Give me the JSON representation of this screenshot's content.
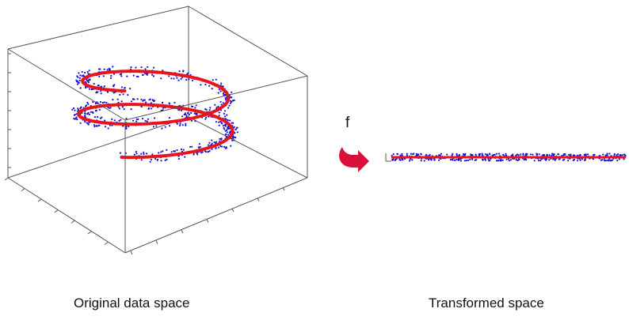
{
  "captions": {
    "original": "Original data space",
    "transformed": "Transformed space"
  },
  "function_label": "f",
  "colors": {
    "curve": "#e8141c",
    "points": "#1515d0",
    "box": "#555555",
    "arrow": "#d8103a"
  }
}
